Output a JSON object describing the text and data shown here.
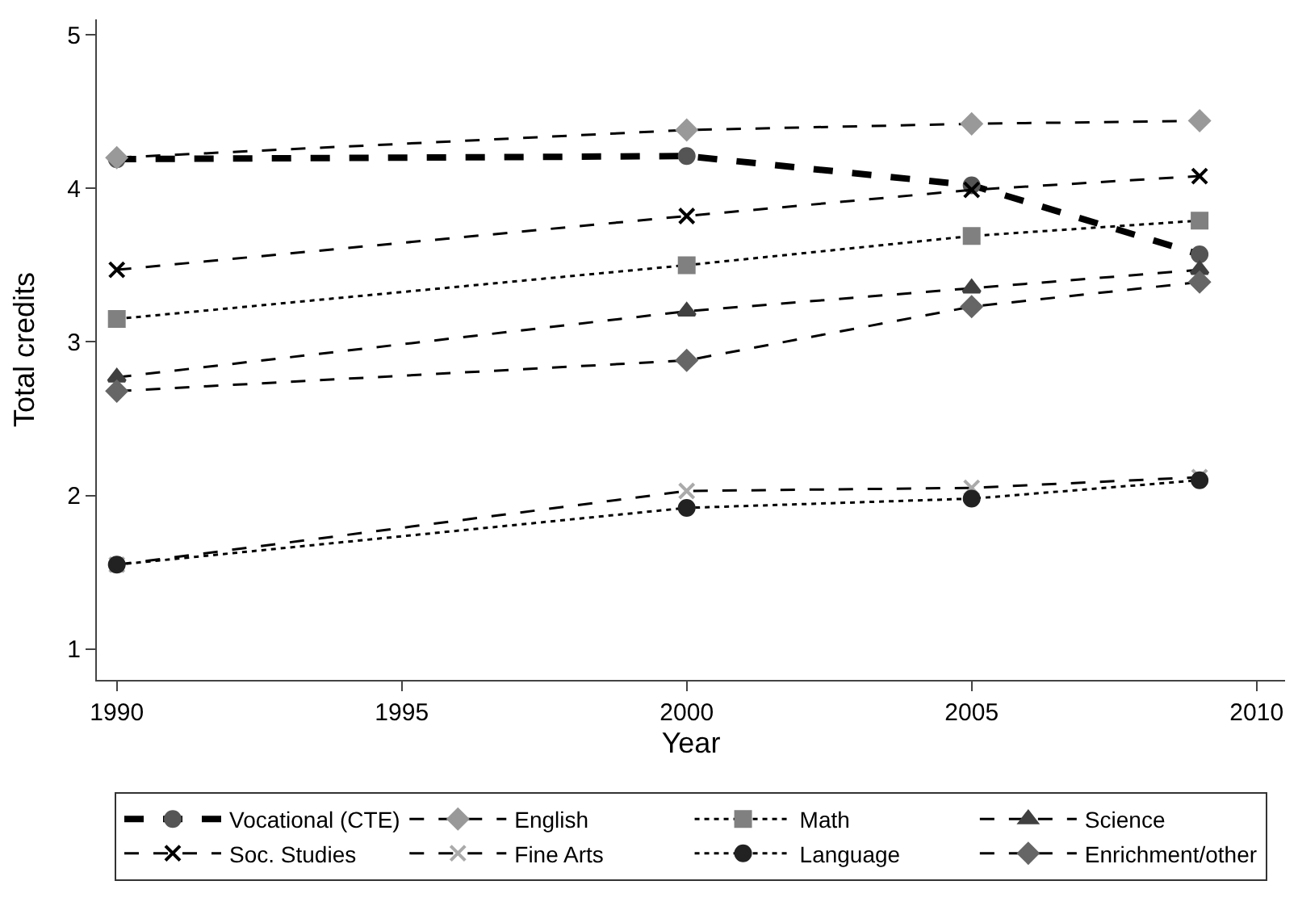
{
  "chart_data": {
    "type": "line",
    "xlabel": "Year",
    "ylabel": "Total credits",
    "x": [
      1990,
      2000,
      2005,
      2009
    ],
    "xlim": [
      1989.65,
      2010.5
    ],
    "xticks": [
      1990,
      1995,
      2000,
      2005,
      2010
    ],
    "ylim": [
      0.8,
      5.1
    ],
    "yticks": [
      1,
      2,
      3,
      4,
      5
    ],
    "legend": "bottom",
    "series": [
      {
        "name": "Vocational (CTE)",
        "color": "#555555",
        "marker": "circle",
        "line_style": "dashed",
        "values": [
          4.19,
          4.21,
          4.02,
          3.57
        ]
      },
      {
        "name": "English",
        "color": "#999999",
        "marker": "diamond",
        "line_style": "dashed",
        "values": [
          4.2,
          4.38,
          4.42,
          4.44
        ]
      },
      {
        "name": "Math",
        "color": "#808080",
        "marker": "square",
        "line_style": "dotted",
        "values": [
          3.15,
          3.5,
          3.69,
          3.79
        ]
      },
      {
        "name": "Science",
        "color": "#404040",
        "marker": "triangle",
        "line_style": "dashed",
        "values": [
          2.77,
          3.2,
          3.35,
          3.47
        ]
      },
      {
        "name": "Soc. Studies",
        "color": "#000000",
        "marker": "cross",
        "line_style": "dashed",
        "values": [
          3.47,
          3.82,
          3.99,
          4.08
        ]
      },
      {
        "name": "Fine Arts",
        "color": "#aaaaaa",
        "marker": "cross",
        "line_style": "dashed",
        "values": [
          1.55,
          2.03,
          2.05,
          2.12
        ]
      },
      {
        "name": "Language",
        "color": "#222222",
        "marker": "circle",
        "line_style": "dotted",
        "values": [
          1.55,
          1.92,
          1.98,
          2.1
        ]
      },
      {
        "name": "Enrichment/other",
        "color": "#666666",
        "marker": "diamond",
        "line_style": "dashed",
        "values": [
          2.68,
          2.88,
          3.23,
          3.39
        ]
      }
    ]
  }
}
